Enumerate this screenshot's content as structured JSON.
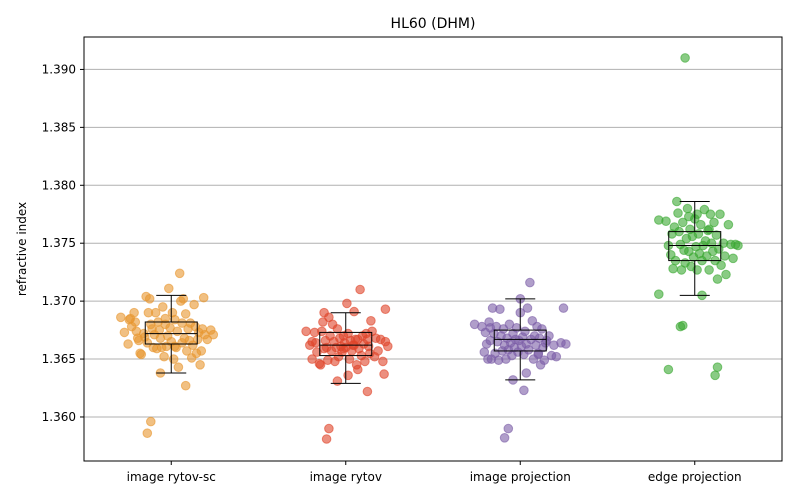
{
  "chart_data": {
    "type": "scatter",
    "title": "HL60 (DHM)",
    "xlabel": "",
    "ylabel": "refractive index",
    "ylim": [
      1.3562,
      1.3928
    ],
    "yticks": [
      "1.360",
      "1.365",
      "1.370",
      "1.375",
      "1.380",
      "1.385",
      "1.390"
    ],
    "grid": "horizontal",
    "categories": [
      "image rytov-sc",
      "image rytov",
      "image projection",
      "edge projection"
    ],
    "series": [
      {
        "color": "#e8962e",
        "box": {
          "whisker_low": 1.3638,
          "q1": 1.3663,
          "median": 1.3672,
          "q3": 1.3682,
          "whisker_high": 1.3705
        },
        "points": [
          [
            -0.42,
            1.3686
          ],
          [
            -0.35,
            1.3684
          ],
          [
            -0.33,
            1.3678
          ],
          [
            -0.31,
            1.369
          ],
          [
            -0.3,
            1.3682
          ],
          [
            -0.29,
            1.3674
          ],
          [
            -0.28,
            1.3668
          ],
          [
            -0.27,
            1.3666
          ],
          [
            -0.26,
            1.3655
          ],
          [
            -0.25,
            1.3654
          ],
          [
            -0.23,
            1.3672
          ],
          [
            -0.22,
            1.3669
          ],
          [
            -0.21,
            1.3704
          ],
          [
            -0.2,
            1.3664
          ],
          [
            -0.19,
            1.369
          ],
          [
            -0.18,
            1.3702
          ],
          [
            -0.17,
            1.368
          ],
          [
            -0.16,
            1.3676
          ],
          [
            -0.15,
            1.366
          ],
          [
            -0.14,
            1.3671
          ],
          [
            -0.13,
            1.369
          ],
          [
            -0.12,
            1.3659
          ],
          [
            -0.11,
            1.3682
          ],
          [
            -0.1,
            1.3675
          ],
          [
            -0.09,
            1.3668
          ],
          [
            -0.08,
            1.366
          ],
          [
            -0.07,
            1.3695
          ],
          [
            -0.06,
            1.3652
          ],
          [
            -0.05,
            1.3685
          ],
          [
            -0.04,
            1.3661
          ],
          [
            -0.03,
            1.367
          ],
          [
            -0.02,
            1.3711
          ],
          [
            -0.01,
            1.3677
          ],
          [
            0.0,
            1.3665
          ],
          [
            0.01,
            1.369
          ],
          [
            0.02,
            1.365
          ],
          [
            0.03,
            1.3684
          ],
          [
            0.04,
            1.366
          ],
          [
            0.05,
            1.3674
          ],
          [
            0.06,
            1.3643
          ],
          [
            0.07,
            1.3724
          ],
          [
            0.08,
            1.37
          ],
          [
            0.09,
            1.3681
          ],
          [
            0.1,
            1.3702
          ],
          [
            0.11,
            1.3668
          ],
          [
            0.12,
            1.3689
          ],
          [
            0.13,
            1.3657
          ],
          [
            0.14,
            1.3676
          ],
          [
            0.15,
            1.3666
          ],
          [
            0.16,
            1.3681
          ],
          [
            0.17,
            1.3651
          ],
          [
            0.18,
            1.3662
          ],
          [
            0.19,
            1.3697
          ],
          [
            0.2,
            1.3678
          ],
          [
            0.21,
            1.3655
          ],
          [
            0.22,
            1.3667
          ],
          [
            0.23,
            1.3673
          ],
          [
            0.24,
            1.3645
          ],
          [
            0.25,
            1.3657
          ],
          [
            0.26,
            1.3676
          ],
          [
            0.27,
            1.3703
          ],
          [
            0.28,
            1.3671
          ],
          [
            0.3,
            1.3667
          ],
          [
            0.33,
            1.3675
          ],
          [
            0.35,
            1.3671
          ],
          [
            -0.39,
            1.3673
          ],
          [
            -0.36,
            1.3663
          ],
          [
            -0.34,
            1.3685
          ],
          [
            0.12,
            1.3627
          ],
          [
            -0.17,
            1.3596
          ],
          [
            -0.2,
            1.3586
          ],
          [
            -0.09,
            1.3638
          ],
          [
            0.03,
            1.3661
          ],
          [
            -0.05,
            1.368
          ],
          [
            0.09,
            1.3664
          ]
        ]
      },
      {
        "color": "#e0452a",
        "box": {
          "whisker_low": 1.3629,
          "q1": 1.3653,
          "median": 1.3662,
          "q3": 1.3673,
          "whisker_high": 1.369
        },
        "points": [
          [
            -0.33,
            1.3674
          ],
          [
            -0.3,
            1.3662
          ],
          [
            -0.28,
            1.365
          ],
          [
            -0.26,
            1.3673
          ],
          [
            -0.25,
            1.3664
          ],
          [
            -0.24,
            1.3656
          ],
          [
            -0.22,
            1.3646
          ],
          [
            -0.21,
            1.3645
          ],
          [
            -0.2,
            1.3674
          ],
          [
            -0.19,
            1.3682
          ],
          [
            -0.18,
            1.369
          ],
          [
            -0.17,
            1.3666
          ],
          [
            -0.16,
            1.366
          ],
          [
            -0.15,
            1.3649
          ],
          [
            -0.14,
            1.3686
          ],
          [
            -0.13,
            1.367
          ],
          [
            -0.12,
            1.3657
          ],
          [
            -0.11,
            1.368
          ],
          [
            -0.1,
            1.3665
          ],
          [
            -0.09,
            1.3648
          ],
          [
            -0.08,
            1.366
          ],
          [
            -0.07,
            1.3676
          ],
          [
            -0.06,
            1.3652
          ],
          [
            -0.05,
            1.3668
          ],
          [
            -0.04,
            1.3661
          ],
          [
            -0.03,
            1.3656
          ],
          [
            -0.02,
            1.367
          ],
          [
            -0.01,
            1.3664
          ],
          [
            0.0,
            1.366
          ],
          [
            0.01,
            1.3698
          ],
          [
            0.02,
            1.3672
          ],
          [
            0.03,
            1.365
          ],
          [
            0.04,
            1.3666
          ],
          [
            0.05,
            1.3657
          ],
          [
            0.06,
            1.3662
          ],
          [
            0.07,
            1.3691
          ],
          [
            0.08,
            1.3667
          ],
          [
            0.09,
            1.3645
          ],
          [
            0.1,
            1.3667
          ],
          [
            0.11,
            1.3659
          ],
          [
            0.12,
            1.371
          ],
          [
            0.13,
            1.3653
          ],
          [
            0.14,
            1.367
          ],
          [
            0.15,
            1.3663
          ],
          [
            0.16,
            1.3648
          ],
          [
            0.17,
            1.3672
          ],
          [
            0.18,
            1.3667
          ],
          [
            0.19,
            1.3661
          ],
          [
            0.2,
            1.3655
          ],
          [
            0.21,
            1.3683
          ],
          [
            0.22,
            1.3674
          ],
          [
            0.24,
            1.3652
          ],
          [
            0.25,
            1.3668
          ],
          [
            0.27,
            1.3657
          ],
          [
            0.29,
            1.3667
          ],
          [
            0.31,
            1.3648
          ],
          [
            0.32,
            1.3637
          ],
          [
            0.33,
            1.3665
          ],
          [
            0.35,
            1.3661
          ],
          [
            -0.28,
            1.3665
          ],
          [
            -0.07,
            1.3631
          ],
          [
            -0.14,
            1.359
          ],
          [
            -0.16,
            1.3581
          ],
          [
            0.18,
            1.3622
          ],
          [
            0.02,
            1.3636
          ],
          [
            0.33,
            1.3693
          ],
          [
            0.1,
            1.3641
          ],
          [
            -0.02,
            1.3659
          ],
          [
            -0.18,
            1.3659
          ],
          [
            0.07,
            1.3662
          ]
        ]
      },
      {
        "color": "#7b5ea7",
        "box": {
          "whisker_low": 1.3632,
          "q1": 1.3657,
          "median": 1.3667,
          "q3": 1.3675,
          "whisker_high": 1.3702
        },
        "points": [
          [
            -0.38,
            1.368
          ],
          [
            -0.32,
            1.3678
          ],
          [
            -0.3,
            1.3656
          ],
          [
            -0.29,
            1.3673
          ],
          [
            -0.28,
            1.3663
          ],
          [
            -0.27,
            1.365
          ],
          [
            -0.26,
            1.3682
          ],
          [
            -0.25,
            1.3666
          ],
          [
            -0.24,
            1.365
          ],
          [
            -0.23,
            1.3694
          ],
          [
            -0.22,
            1.3672
          ],
          [
            -0.21,
            1.3655
          ],
          [
            -0.2,
            1.3678
          ],
          [
            -0.19,
            1.3665
          ],
          [
            -0.18,
            1.3649
          ],
          [
            -0.17,
            1.3693
          ],
          [
            -0.16,
            1.367
          ],
          [
            -0.15,
            1.3657
          ],
          [
            -0.14,
            1.3676
          ],
          [
            -0.13,
            1.3662
          ],
          [
            -0.12,
            1.365
          ],
          [
            -0.11,
            1.3668
          ],
          [
            -0.1,
            1.3658
          ],
          [
            -0.09,
            1.368
          ],
          [
            -0.08,
            1.3664
          ],
          [
            -0.07,
            1.3653
          ],
          [
            -0.06,
            1.3672
          ],
          [
            -0.05,
            1.366
          ],
          [
            -0.04,
            1.3667
          ],
          [
            -0.03,
            1.3677
          ],
          [
            -0.02,
            1.3656
          ],
          [
            -0.01,
            1.3666
          ],
          [
            0.0,
            1.3702
          ],
          [
            0.01,
            1.3661
          ],
          [
            0.02,
            1.3669
          ],
          [
            0.03,
            1.3654
          ],
          [
            0.04,
            1.3674
          ],
          [
            0.05,
            1.3663
          ],
          [
            0.06,
            1.3694
          ],
          [
            0.07,
            1.3658
          ],
          [
            0.08,
            1.3716
          ],
          [
            0.09,
            1.3667
          ],
          [
            0.1,
            1.3683
          ],
          [
            0.11,
            1.365
          ],
          [
            0.12,
            1.367
          ],
          [
            0.13,
            1.3662
          ],
          [
            0.14,
            1.3678
          ],
          [
            0.15,
            1.3655
          ],
          [
            0.16,
            1.3668
          ],
          [
            0.17,
            1.3645
          ],
          [
            0.18,
            1.3676
          ],
          [
            0.19,
            1.366
          ],
          [
            0.2,
            1.3649
          ],
          [
            0.22,
            1.3666
          ],
          [
            0.24,
            1.367
          ],
          [
            0.26,
            1.3653
          ],
          [
            0.28,
            1.3662
          ],
          [
            0.3,
            1.3652
          ],
          [
            0.34,
            1.3664
          ],
          [
            0.36,
            1.3694
          ],
          [
            -0.1,
            1.359
          ],
          [
            -0.13,
            1.3582
          ],
          [
            -0.06,
            1.3632
          ],
          [
            0.0,
            1.369
          ],
          [
            0.03,
            1.3623
          ],
          [
            0.05,
            1.3638
          ],
          [
            0.15,
            1.3654
          ],
          [
            0.38,
            1.3663
          ],
          [
            -0.25,
            1.3677
          ],
          [
            0.21,
            1.3664
          ]
        ]
      },
      {
        "color": "#3aa832",
        "box": {
          "whisker_low": 1.3705,
          "q1": 1.3735,
          "median": 1.3748,
          "q3": 1.376,
          "whisker_high": 1.3786
        },
        "points": [
          [
            -0.3,
            1.377
          ],
          [
            -0.24,
            1.3769
          ],
          [
            -0.22,
            1.3748
          ],
          [
            -0.2,
            1.374
          ],
          [
            -0.19,
            1.3758
          ],
          [
            -0.18,
            1.3728
          ],
          [
            -0.17,
            1.3764
          ],
          [
            -0.16,
            1.3735
          ],
          [
            -0.15,
            1.3786
          ],
          [
            -0.14,
            1.3776
          ],
          [
            -0.13,
            1.376
          ],
          [
            -0.12,
            1.3749
          ],
          [
            -0.11,
            1.3727
          ],
          [
            -0.1,
            1.3768
          ],
          [
            -0.09,
            1.3744
          ],
          [
            -0.08,
            1.3733
          ],
          [
            -0.07,
            1.3754
          ],
          [
            -0.06,
            1.378
          ],
          [
            -0.05,
            1.3743
          ],
          [
            -0.04,
            1.3762
          ],
          [
            -0.03,
            1.373
          ],
          [
            -0.02,
            1.3756
          ],
          [
            -0.01,
            1.3738
          ],
          [
            0.0,
            1.3771
          ],
          [
            0.01,
            1.3747
          ],
          [
            0.02,
            1.3727
          ],
          [
            0.03,
            1.3758
          ],
          [
            0.04,
            1.3741
          ],
          [
            0.05,
            1.3766
          ],
          [
            0.06,
            1.3735
          ],
          [
            0.07,
            1.3748
          ],
          [
            0.08,
            1.3779
          ],
          [
            0.09,
            1.3752
          ],
          [
            0.1,
            1.3739
          ],
          [
            0.11,
            1.3761
          ],
          [
            0.12,
            1.3727
          ],
          [
            0.13,
            1.3775
          ],
          [
            0.14,
            1.375
          ],
          [
            0.15,
            1.3743
          ],
          [
            0.16,
            1.3768
          ],
          [
            0.17,
            1.3735
          ],
          [
            0.18,
            1.3757
          ],
          [
            0.19,
            1.3719
          ],
          [
            0.2,
            1.3745
          ],
          [
            0.21,
            1.3775
          ],
          [
            0.22,
            1.3731
          ],
          [
            0.24,
            1.375
          ],
          [
            0.26,
            1.3723
          ],
          [
            0.28,
            1.3766
          ],
          [
            0.3,
            1.3749
          ],
          [
            0.32,
            1.3737
          ],
          [
            0.34,
            1.3749
          ],
          [
            0.36,
            1.3748
          ],
          [
            -0.08,
            1.391
          ],
          [
            -0.3,
            1.3706
          ],
          [
            -0.12,
            1.3678
          ],
          [
            -0.1,
            1.3679
          ],
          [
            -0.22,
            1.3641
          ],
          [
            0.17,
            1.3636
          ],
          [
            0.19,
            1.3643
          ],
          [
            0.06,
            1.3705
          ],
          [
            0.25,
            1.3739
          ],
          [
            0.02,
            1.3775
          ],
          [
            -0.05,
            1.3773
          ],
          [
            0.12,
            1.3762
          ]
        ]
      }
    ]
  }
}
